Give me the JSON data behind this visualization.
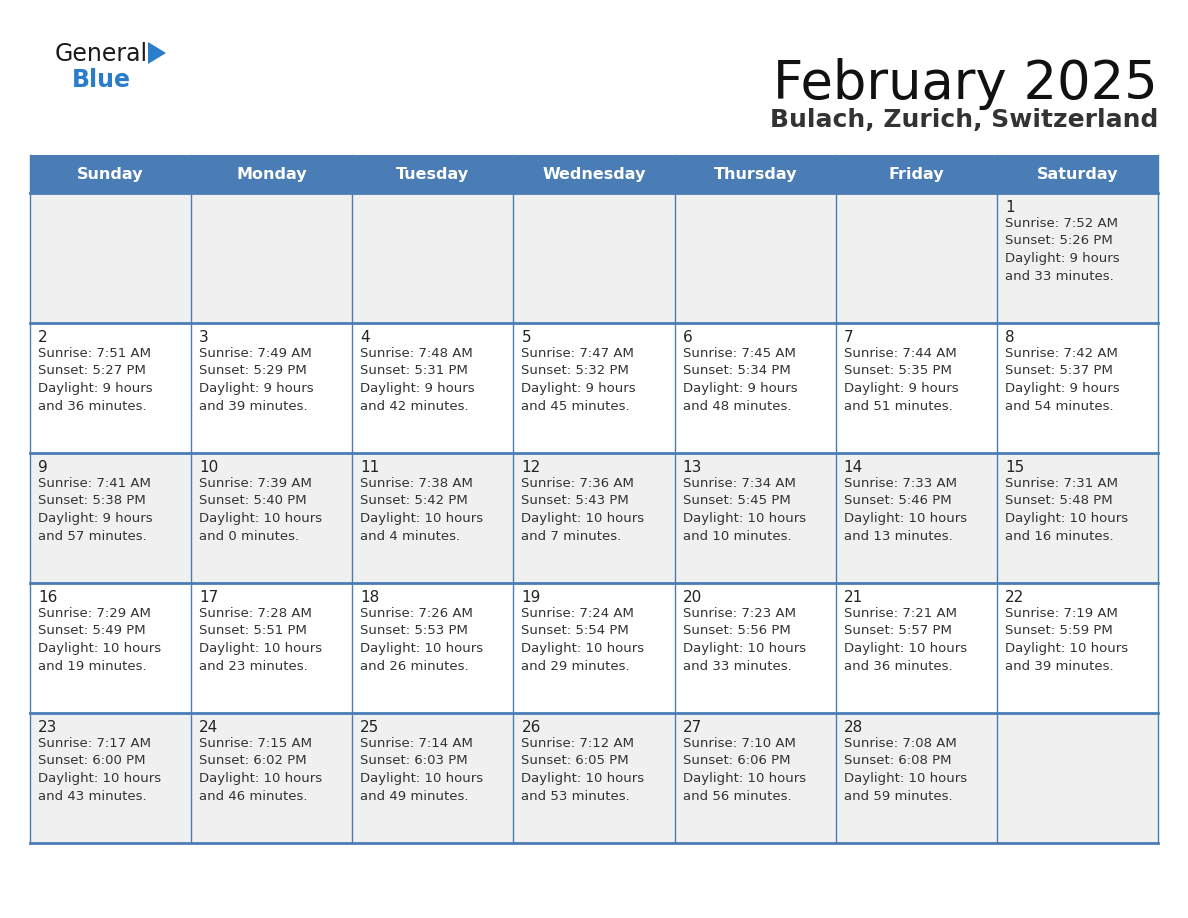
{
  "title": "February 2025",
  "subtitle": "Bulach, Zurich, Switzerland",
  "days_of_week": [
    "Sunday",
    "Monday",
    "Tuesday",
    "Wednesday",
    "Thursday",
    "Friday",
    "Saturday"
  ],
  "header_bg": "#4a7db5",
  "header_fg": "#ffffff",
  "cell_bg_odd": "#f0f0f0",
  "cell_bg_even": "#ffffff",
  "grid_line_color": "#4a7db5",
  "text_color": "#333333",
  "day_num_color": "#222222",
  "calendar_data": [
    [
      null,
      null,
      null,
      null,
      null,
      null,
      {
        "day": 1,
        "sunrise": "7:52 AM",
        "sunset": "5:26 PM",
        "daylight_line1": "Daylight: 9 hours",
        "daylight_line2": "and 33 minutes."
      }
    ],
    [
      {
        "day": 2,
        "sunrise": "7:51 AM",
        "sunset": "5:27 PM",
        "daylight_line1": "Daylight: 9 hours",
        "daylight_line2": "and 36 minutes."
      },
      {
        "day": 3,
        "sunrise": "7:49 AM",
        "sunset": "5:29 PM",
        "daylight_line1": "Daylight: 9 hours",
        "daylight_line2": "and 39 minutes."
      },
      {
        "day": 4,
        "sunrise": "7:48 AM",
        "sunset": "5:31 PM",
        "daylight_line1": "Daylight: 9 hours",
        "daylight_line2": "and 42 minutes."
      },
      {
        "day": 5,
        "sunrise": "7:47 AM",
        "sunset": "5:32 PM",
        "daylight_line1": "Daylight: 9 hours",
        "daylight_line2": "and 45 minutes."
      },
      {
        "day": 6,
        "sunrise": "7:45 AM",
        "sunset": "5:34 PM",
        "daylight_line1": "Daylight: 9 hours",
        "daylight_line2": "and 48 minutes."
      },
      {
        "day": 7,
        "sunrise": "7:44 AM",
        "sunset": "5:35 PM",
        "daylight_line1": "Daylight: 9 hours",
        "daylight_line2": "and 51 minutes."
      },
      {
        "day": 8,
        "sunrise": "7:42 AM",
        "sunset": "5:37 PM",
        "daylight_line1": "Daylight: 9 hours",
        "daylight_line2": "and 54 minutes."
      }
    ],
    [
      {
        "day": 9,
        "sunrise": "7:41 AM",
        "sunset": "5:38 PM",
        "daylight_line1": "Daylight: 9 hours",
        "daylight_line2": "and 57 minutes."
      },
      {
        "day": 10,
        "sunrise": "7:39 AM",
        "sunset": "5:40 PM",
        "daylight_line1": "Daylight: 10 hours",
        "daylight_line2": "and 0 minutes."
      },
      {
        "day": 11,
        "sunrise": "7:38 AM",
        "sunset": "5:42 PM",
        "daylight_line1": "Daylight: 10 hours",
        "daylight_line2": "and 4 minutes."
      },
      {
        "day": 12,
        "sunrise": "7:36 AM",
        "sunset": "5:43 PM",
        "daylight_line1": "Daylight: 10 hours",
        "daylight_line2": "and 7 minutes."
      },
      {
        "day": 13,
        "sunrise": "7:34 AM",
        "sunset": "5:45 PM",
        "daylight_line1": "Daylight: 10 hours",
        "daylight_line2": "and 10 minutes."
      },
      {
        "day": 14,
        "sunrise": "7:33 AM",
        "sunset": "5:46 PM",
        "daylight_line1": "Daylight: 10 hours",
        "daylight_line2": "and 13 minutes."
      },
      {
        "day": 15,
        "sunrise": "7:31 AM",
        "sunset": "5:48 PM",
        "daylight_line1": "Daylight: 10 hours",
        "daylight_line2": "and 16 minutes."
      }
    ],
    [
      {
        "day": 16,
        "sunrise": "7:29 AM",
        "sunset": "5:49 PM",
        "daylight_line1": "Daylight: 10 hours",
        "daylight_line2": "and 19 minutes."
      },
      {
        "day": 17,
        "sunrise": "7:28 AM",
        "sunset": "5:51 PM",
        "daylight_line1": "Daylight: 10 hours",
        "daylight_line2": "and 23 minutes."
      },
      {
        "day": 18,
        "sunrise": "7:26 AM",
        "sunset": "5:53 PM",
        "daylight_line1": "Daylight: 10 hours",
        "daylight_line2": "and 26 minutes."
      },
      {
        "day": 19,
        "sunrise": "7:24 AM",
        "sunset": "5:54 PM",
        "daylight_line1": "Daylight: 10 hours",
        "daylight_line2": "and 29 minutes."
      },
      {
        "day": 20,
        "sunrise": "7:23 AM",
        "sunset": "5:56 PM",
        "daylight_line1": "Daylight: 10 hours",
        "daylight_line2": "and 33 minutes."
      },
      {
        "day": 21,
        "sunrise": "7:21 AM",
        "sunset": "5:57 PM",
        "daylight_line1": "Daylight: 10 hours",
        "daylight_line2": "and 36 minutes."
      },
      {
        "day": 22,
        "sunrise": "7:19 AM",
        "sunset": "5:59 PM",
        "daylight_line1": "Daylight: 10 hours",
        "daylight_line2": "and 39 minutes."
      }
    ],
    [
      {
        "day": 23,
        "sunrise": "7:17 AM",
        "sunset": "6:00 PM",
        "daylight_line1": "Daylight: 10 hours",
        "daylight_line2": "and 43 minutes."
      },
      {
        "day": 24,
        "sunrise": "7:15 AM",
        "sunset": "6:02 PM",
        "daylight_line1": "Daylight: 10 hours",
        "daylight_line2": "and 46 minutes."
      },
      {
        "day": 25,
        "sunrise": "7:14 AM",
        "sunset": "6:03 PM",
        "daylight_line1": "Daylight: 10 hours",
        "daylight_line2": "and 49 minutes."
      },
      {
        "day": 26,
        "sunrise": "7:12 AM",
        "sunset": "6:05 PM",
        "daylight_line1": "Daylight: 10 hours",
        "daylight_line2": "and 53 minutes."
      },
      {
        "day": 27,
        "sunrise": "7:10 AM",
        "sunset": "6:06 PM",
        "daylight_line1": "Daylight: 10 hours",
        "daylight_line2": "and 56 minutes."
      },
      {
        "day": 28,
        "sunrise": "7:08 AM",
        "sunset": "6:08 PM",
        "daylight_line1": "Daylight: 10 hours",
        "daylight_line2": "and 59 minutes."
      },
      null
    ]
  ]
}
